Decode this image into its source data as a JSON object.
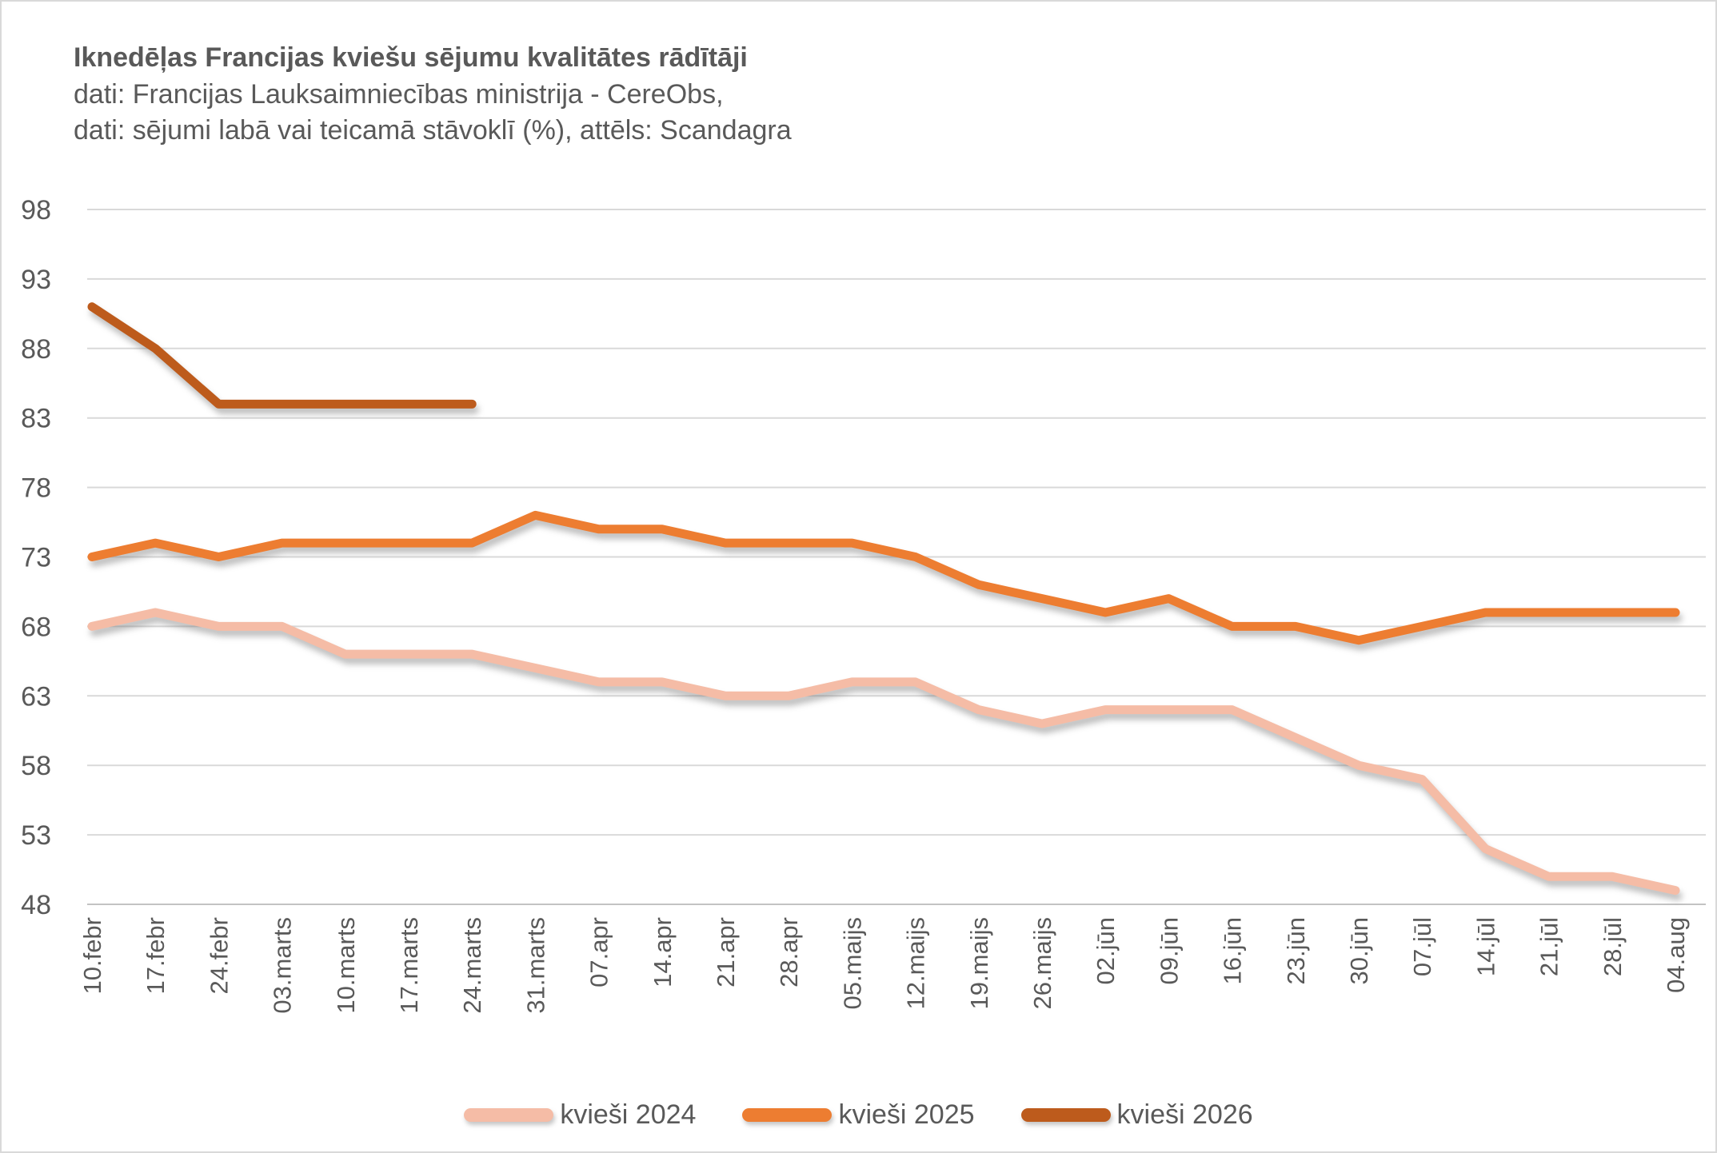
{
  "header": {
    "title": "Iknedēļas Francijas kviešu sējumu kvalitātes rādītāji",
    "subtitle_line1": "dati: Francijas Lauksaimniecības ministrija - CereObs,",
    "subtitle_line2": "dati: sējumi labā vai teicamā stāvoklī (%), attēls: Scandagra"
  },
  "colors": {
    "background": "#FFFFFF",
    "border": "#D9D9D9",
    "text": "#595959",
    "gridline": "#D9D9D9"
  },
  "chart_data": {
    "type": "line",
    "title": "Iknedēļas Francijas kviešu sējumu kvalitātes rādītāji",
    "xlabel": "",
    "ylabel": "",
    "ylim": [
      48,
      98
    ],
    "yticks": [
      48,
      53,
      58,
      63,
      68,
      73,
      78,
      83,
      88,
      93,
      98
    ],
    "grid": true,
    "legend_position": "bottom",
    "categories": [
      "10.febr",
      "17.febr",
      "24.febr",
      "03.marts",
      "10.marts",
      "17.marts",
      "24.marts",
      "31.marts",
      "07.apr",
      "14.apr",
      "21.apr",
      "28.apr",
      "05.maijs",
      "12.maijs",
      "19.maijs",
      "26.maijs",
      "02.jūn",
      "09.jūn",
      "16.jūn",
      "23.jūn",
      "30.jūn",
      "07.jūl",
      "14.jūl",
      "21.jūl",
      "28.jūl",
      "04.aug"
    ],
    "series": [
      {
        "name": "kvieši 2024",
        "color": "#F5BCA6",
        "values": [
          68,
          69,
          68,
          68,
          66,
          66,
          66,
          65,
          64,
          64,
          63,
          63,
          64,
          64,
          62,
          61,
          62,
          62,
          62,
          60,
          58,
          57,
          52,
          50,
          50,
          49
        ]
      },
      {
        "name": "kvieši 2025",
        "color": "#ED7D31",
        "values": [
          73,
          74,
          73,
          74,
          74,
          74,
          74,
          76,
          75,
          75,
          74,
          74,
          74,
          73,
          71,
          70,
          69,
          70,
          68,
          68,
          67,
          68,
          69,
          69,
          69,
          69
        ]
      },
      {
        "name": "kvieši 2026",
        "color": "#BD5B1C",
        "values": [
          91,
          88,
          84,
          84,
          84,
          84,
          84
        ]
      }
    ]
  }
}
